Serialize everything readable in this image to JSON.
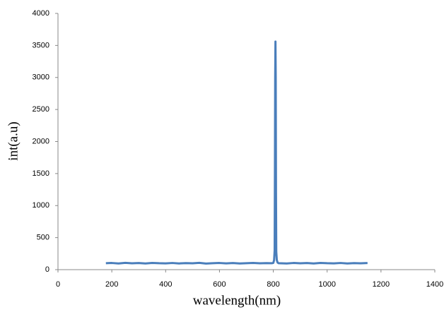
{
  "chart_data": {
    "type": "line",
    "x_label": "wavelength(nm)",
    "y_label": "int(a.u)",
    "x": [
      178,
      200,
      225,
      250,
      275,
      300,
      325,
      350,
      375,
      400,
      425,
      450,
      475,
      500,
      525,
      550,
      575,
      600,
      625,
      650,
      675,
      700,
      725,
      750,
      775,
      795,
      800,
      803,
      805,
      806,
      807,
      808,
      809,
      810,
      811,
      813,
      816,
      820,
      850,
      875,
      900,
      925,
      950,
      975,
      1000,
      1025,
      1050,
      1075,
      1100,
      1125,
      1150
    ],
    "series": [
      {
        "color": "#4a7ebb",
        "values": [
          100,
          104,
          97,
          106,
          99,
          103,
          96,
          105,
          100,
          98,
          104,
          97,
          102,
          99,
          106,
          95,
          101,
          104,
          98,
          103,
          97,
          100,
          105,
          99,
          102,
          100,
          105,
          150,
          300,
          1500,
          3000,
          3560,
          3000,
          1200,
          280,
          150,
          110,
          100,
          97,
          104,
          99,
          103,
          96,
          105,
          100,
          98,
          104,
          97,
          102,
          99,
          103
        ]
      }
    ],
    "xlim": [
      0,
      1400
    ],
    "xticks": [
      0,
      200,
      400,
      600,
      800,
      1000,
      1200,
      1400
    ],
    "ylim": [
      0,
      4000
    ],
    "yticks": [
      0,
      500,
      1000,
      1500,
      2000,
      2500,
      3000,
      3500,
      4000
    ],
    "grid": false
  }
}
